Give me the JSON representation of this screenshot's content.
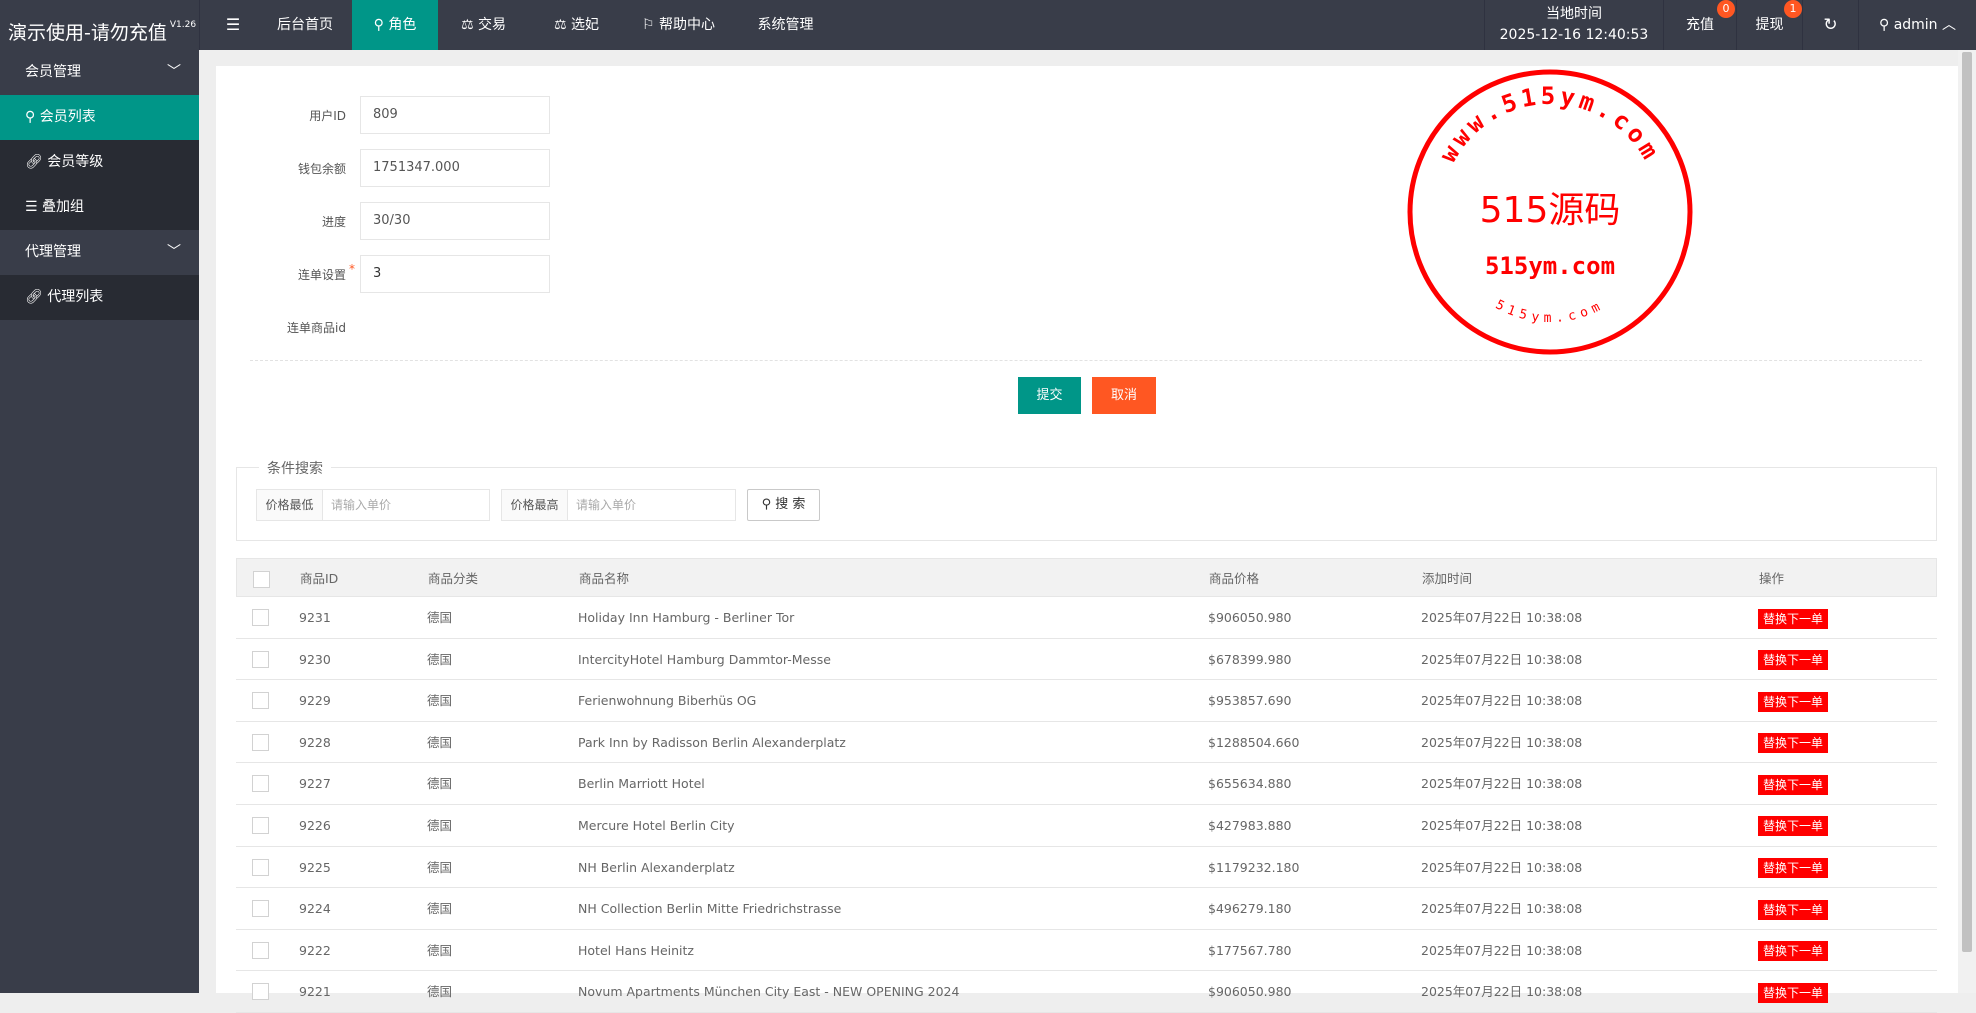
{
  "app": {
    "title": "演示使用-请勿充值",
    "version": "V1.26"
  },
  "nav": [
    {
      "label": "后台首页",
      "icon": ""
    },
    {
      "label": "角色",
      "icon": "user-icon"
    },
    {
      "label": "交易",
      "icon": "scale-icon"
    },
    {
      "label": "选妃",
      "icon": "scale-icon"
    },
    {
      "label": "帮助中心",
      "icon": "flag-icon"
    },
    {
      "label": "系统管理",
      "icon": ""
    }
  ],
  "header": {
    "time_label": "当地时间",
    "time_value": "2025-12-16 12:40:53",
    "recharge": "充值",
    "recharge_badge": "0",
    "withdraw": "提现",
    "withdraw_badge": "1",
    "user": "admin"
  },
  "sidebar": [
    {
      "label": "会员管理",
      "type": "group"
    },
    {
      "label": "会员列表",
      "icon": "user-icon",
      "active": true
    },
    {
      "label": "会员等级",
      "icon": "link-icon"
    },
    {
      "label": "叠加组",
      "icon": "list-icon"
    },
    {
      "label": "代理管理",
      "type": "group"
    },
    {
      "label": "代理列表",
      "icon": "link-icon"
    }
  ],
  "form": {
    "user_id_label": "用户ID",
    "user_id": "809",
    "balance_label": "钱包余额",
    "balance": "1751347.000",
    "progress_label": "进度",
    "progress": "30/30",
    "combo_label": "连单设置",
    "combo": "3",
    "combo_goods_label": "连单商品id",
    "submit": "提交",
    "cancel": "取消"
  },
  "search": {
    "legend": "条件搜索",
    "min_label": "价格最低",
    "min_placeholder": "请输入单价",
    "max_label": "价格最高",
    "max_placeholder": "请输入单价",
    "button": "搜 索"
  },
  "table": {
    "headers": [
      "商品ID",
      "商品分类",
      "商品名称",
      "商品价格",
      "添加时间",
      "操作"
    ],
    "rows": [
      [
        "9231",
        "德国",
        "Holiday Inn Hamburg - Berliner Tor",
        "$906050.980",
        "2025年07月22日 10:38:08",
        "替换下一单"
      ],
      [
        "9230",
        "德国",
        "IntercityHotel Hamburg Dammtor-Messe",
        "$678399.980",
        "2025年07月22日 10:38:08",
        "替换下一单"
      ],
      [
        "9229",
        "德国",
        "Ferienwohnung Biberhüs OG",
        "$953857.690",
        "2025年07月22日 10:38:08",
        "替换下一单"
      ],
      [
        "9228",
        "德国",
        "Park Inn by Radisson Berlin Alexanderplatz",
        "$1288504.660",
        "2025年07月22日 10:38:08",
        "替换下一单"
      ],
      [
        "9227",
        "德国",
        "Berlin Marriott Hotel",
        "$655634.880",
        "2025年07月22日 10:38:08",
        "替换下一单"
      ],
      [
        "9226",
        "德国",
        "Mercure Hotel Berlin City",
        "$427983.880",
        "2025年07月22日 10:38:08",
        "替换下一单"
      ],
      [
        "9225",
        "德国",
        "NH Berlin Alexanderplatz",
        "$1179232.180",
        "2025年07月22日 10:38:08",
        "替换下一单"
      ],
      [
        "9224",
        "德国",
        "NH Collection Berlin Mitte Friedrichstrasse",
        "$496279.180",
        "2025年07月22日 10:38:08",
        "替换下一单"
      ],
      [
        "9222",
        "德国",
        "Hotel Hans Heinitz",
        "$177567.780",
        "2025年07月22日 10:38:08",
        "替换下一单"
      ],
      [
        "9221",
        "德国",
        "Novum Apartments München City East - NEW OPENING 2024",
        "$906050.980",
        "2025年07月22日 10:38:08",
        "替换下一单"
      ]
    ]
  },
  "watermark": {
    "center": "515源码",
    "bottom": "515ym.com",
    "ring_top": "www.515ym.com",
    "ring_bottom": "515ym.com"
  },
  "colors": {
    "header": "#393d49",
    "accent": "#009688",
    "danger": "#ff5722",
    "op": "#ff0000"
  }
}
